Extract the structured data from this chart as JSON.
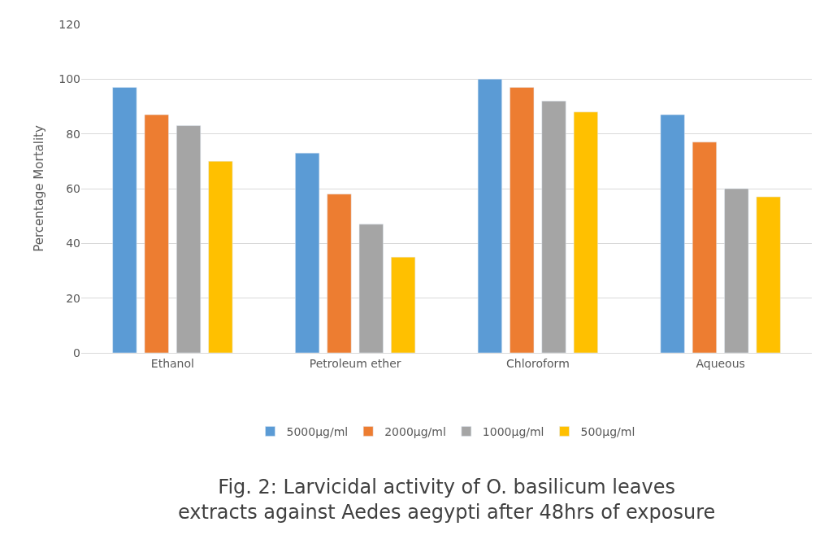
{
  "chart_data": {
    "type": "bar",
    "ylabel": "Percentage Mortality",
    "categories": [
      "Ethanol",
      "Petroleum ether",
      "Chloroform",
      "Aqueous"
    ],
    "series": [
      {
        "name": "5000µg/ml",
        "color": "#5b9bd5",
        "values": [
          97,
          73,
          100,
          87
        ]
      },
      {
        "name": "2000µg/ml",
        "color": "#ed7d31",
        "values": [
          87,
          58,
          97,
          77
        ]
      },
      {
        "name": "1000µg/ml",
        "color": "#a5a5a5",
        "values": [
          83,
          47,
          92,
          60
        ]
      },
      {
        "name": "500µg/ml",
        "color": "#ffc000",
        "values": [
          70,
          35,
          88,
          57
        ]
      }
    ],
    "ylim": [
      0,
      120
    ],
    "yticks": [
      0,
      20,
      40,
      60,
      80,
      100,
      120
    ],
    "grid": "y",
    "legend": "bottom",
    "annotations": [
      "Fig. 2: Larvicidal activity of O. basilicum leaves extracts against Aedes aegypti after 48hrs of exposure"
    ]
  }
}
